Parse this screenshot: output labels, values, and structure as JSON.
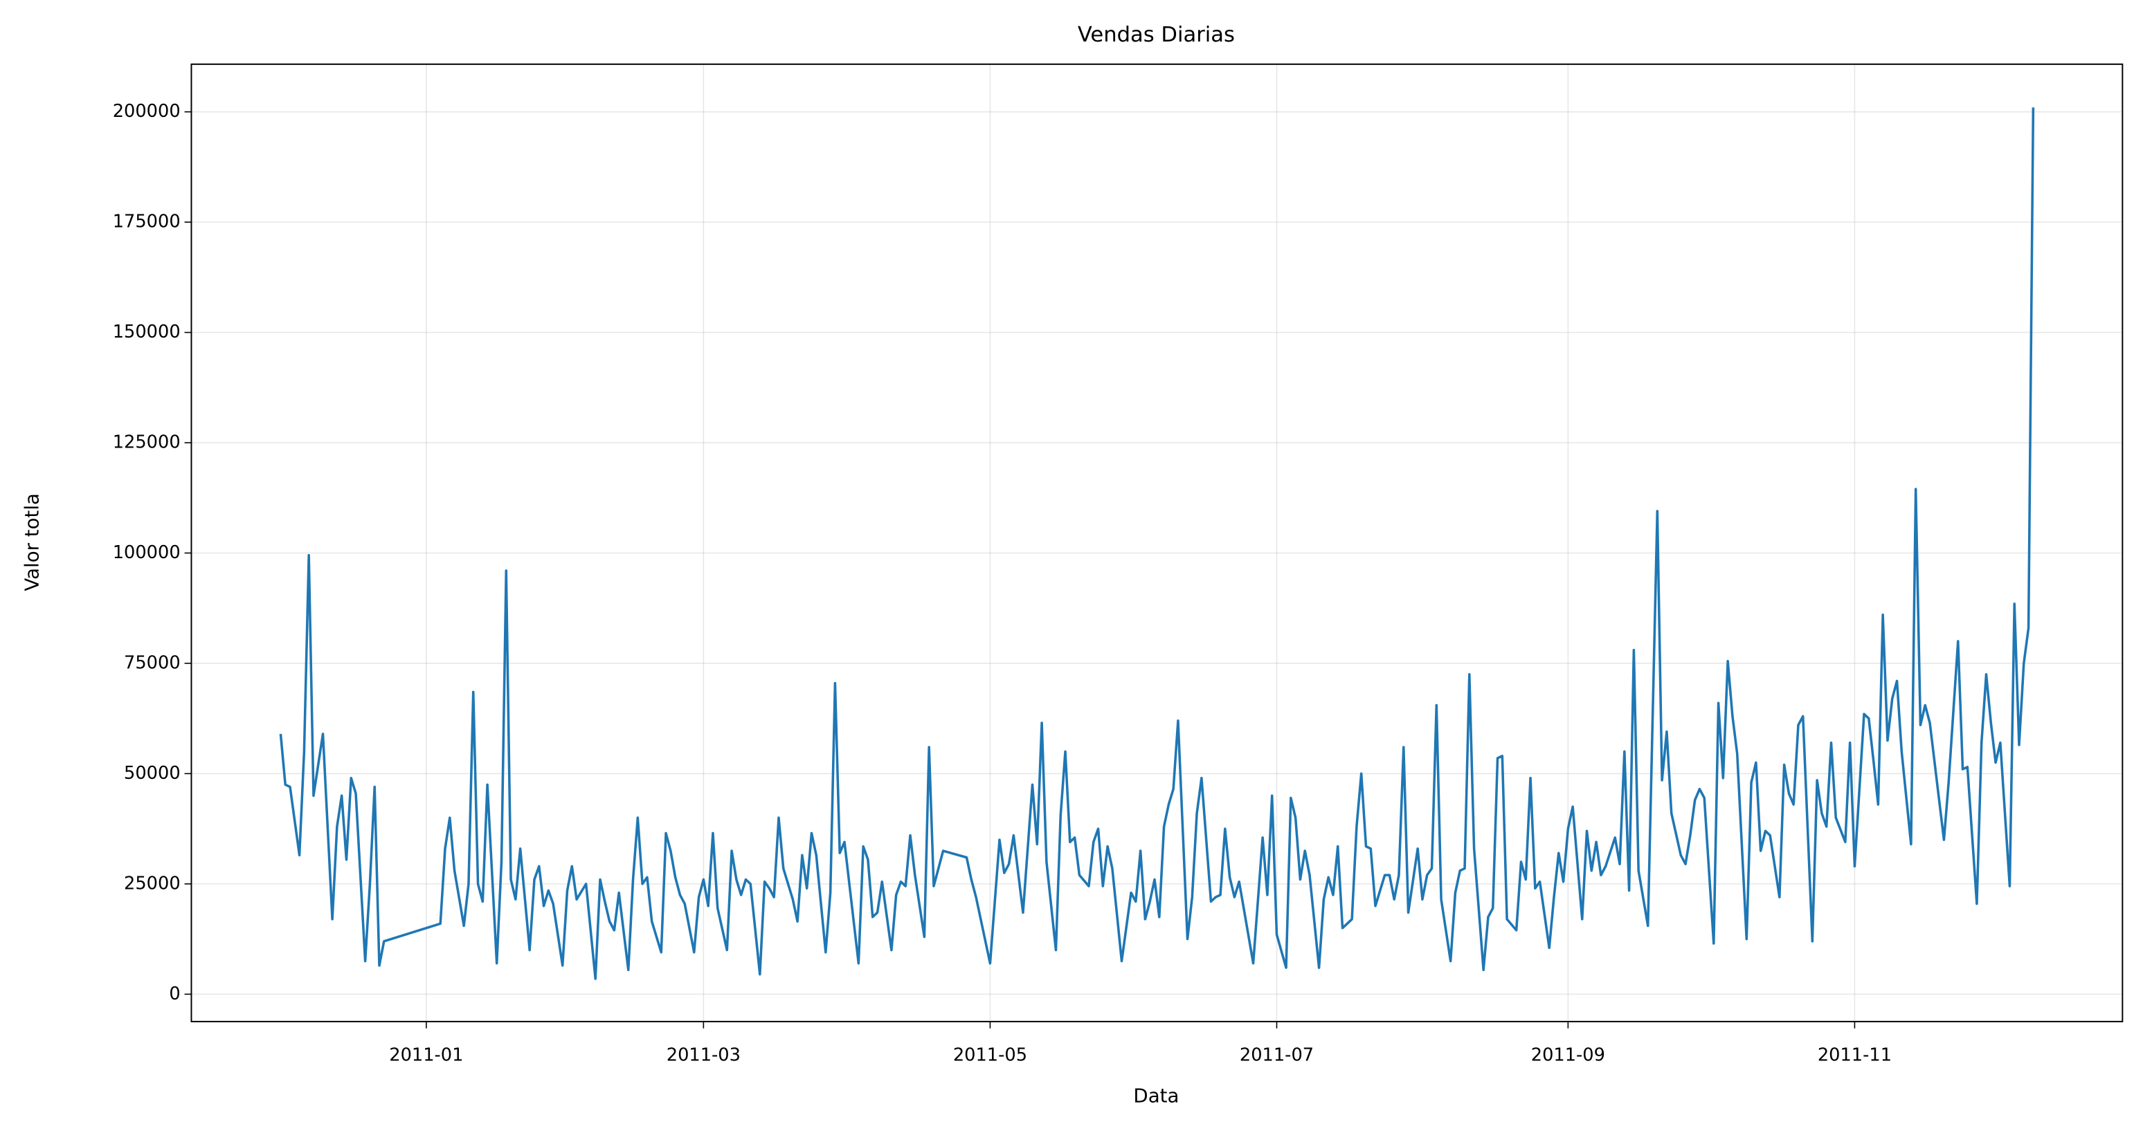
{
  "chart_data": {
    "type": "line",
    "title": "Vendas Diarias",
    "x_label": "Data",
    "y_label": "Valor totla",
    "color": "#1f77b4",
    "grid": true,
    "xlim": [
      -50,
      361
    ],
    "ylim": [
      -6200,
      210800
    ],
    "xticks": [
      {
        "value": 0,
        "label": "2011-01"
      },
      {
        "value": 59,
        "label": "2011-03"
      },
      {
        "value": 120,
        "label": "2011-05"
      },
      {
        "value": 181,
        "label": "2011-07"
      },
      {
        "value": 243,
        "label": "2011-09"
      },
      {
        "value": 304,
        "label": "2011-11"
      }
    ],
    "yticks": [
      0,
      25000,
      50000,
      75000,
      100000,
      125000,
      150000,
      175000,
      200000
    ],
    "x": [
      -31,
      -30,
      -29,
      -27,
      -26,
      -25,
      -24,
      -23,
      -22,
      -20,
      -19,
      -18,
      -17,
      -16,
      -15,
      -13,
      -12,
      -11,
      -10,
      -9,
      3,
      4,
      5,
      6,
      8,
      9,
      10,
      11,
      12,
      13,
      15,
      16,
      17,
      18,
      19,
      20,
      22,
      23,
      24,
      25,
      26,
      27,
      29,
      30,
      31,
      32,
      34,
      36,
      37,
      38,
      39,
      40,
      41,
      43,
      44,
      45,
      46,
      47,
      48,
      50,
      51,
      52,
      53,
      54,
      55,
      57,
      58,
      59,
      60,
      61,
      62,
      64,
      65,
      66,
      67,
      68,
      69,
      71,
      72,
      73,
      74,
      75,
      76,
      77,
      78,
      79,
      80,
      81,
      82,
      83,
      85,
      86,
      87,
      88,
      89,
      92,
      93,
      94,
      95,
      96,
      97,
      99,
      100,
      101,
      102,
      103,
      104,
      106,
      107,
      108,
      110,
      115,
      116,
      117,
      120,
      122,
      123,
      124,
      125,
      127,
      129,
      130,
      131,
      132,
      134,
      135,
      136,
      137,
      138,
      139,
      141,
      142,
      143,
      144,
      145,
      146,
      148,
      150,
      151,
      152,
      153,
      154,
      155,
      156,
      157,
      158,
      159,
      160,
      162,
      163,
      164,
      165,
      167,
      168,
      169,
      170,
      171,
      172,
      173,
      176,
      178,
      179,
      180,
      181,
      183,
      184,
      185,
      186,
      187,
      188,
      190,
      191,
      192,
      193,
      194,
      195,
      197,
      198,
      199,
      200,
      201,
      202,
      204,
      205,
      206,
      207,
      208,
      209,
      211,
      212,
      213,
      214,
      215,
      216,
      218,
      219,
      220,
      221,
      222,
      223,
      225,
      226,
      227,
      228,
      229,
      230,
      232,
      233,
      234,
      235,
      236,
      237,
      239,
      240,
      241,
      242,
      243,
      244,
      246,
      247,
      248,
      249,
      250,
      251,
      253,
      254,
      255,
      256,
      257,
      258,
      260,
      262,
      263,
      264,
      265,
      267,
      268,
      269,
      270,
      271,
      272,
      274,
      275,
      276,
      277,
      278,
      279,
      281,
      282,
      283,
      284,
      285,
      286,
      288,
      289,
      290,
      291,
      292,
      293,
      295,
      296,
      297,
      298,
      299,
      300,
      302,
      303,
      304,
      306,
      307,
      308,
      309,
      310,
      311,
      312,
      313,
      314,
      316,
      317,
      318,
      319,
      320,
      323,
      324,
      326,
      327,
      328,
      330,
      331,
      332,
      333,
      334,
      335,
      337,
      338,
      339,
      340,
      341,
      342
    ],
    "values": [
      59000,
      47500,
      47000,
      31500,
      55000,
      99500,
      45000,
      52000,
      59000,
      17000,
      38000,
      45000,
      30500,
      49000,
      45500,
      7500,
      25000,
      47000,
      6500,
      12000,
      16000,
      33000,
      40000,
      28000,
      15500,
      25000,
      68500,
      25000,
      21000,
      47500,
      7000,
      30000,
      96000,
      26000,
      21500,
      33000,
      10000,
      26000,
      29000,
      20000,
      23500,
      20500,
      6500,
      23500,
      29000,
      21500,
      25000,
      3500,
      26000,
      21000,
      16500,
      14500,
      23000,
      5500,
      26000,
      40000,
      25000,
      26500,
      16500,
      9500,
      36500,
      32500,
      26500,
      22500,
      20500,
      9500,
      22000,
      26000,
      20000,
      36500,
      19500,
      10000,
      32500,
      26000,
      22500,
      26000,
      25000,
      4500,
      25500,
      24000,
      22000,
      40000,
      28500,
      25000,
      21500,
      16500,
      31500,
      24000,
      36500,
      31500,
      9500,
      23000,
      70500,
      32000,
      34500,
      7000,
      33500,
      30500,
      17500,
      18500,
      25500,
      10000,
      22500,
      25500,
      24500,
      36000,
      27000,
      13000,
      56000,
      24500,
      32500,
      31000,
      26000,
      22000,
      7000,
      35000,
      27500,
      29500,
      36000,
      18500,
      47500,
      34000,
      61500,
      30000,
      10000,
      40500,
      55000,
      34500,
      35500,
      27000,
      24500,
      34500,
      37500,
      24500,
      33500,
      28500,
      7500,
      23000,
      21000,
      32500,
      17000,
      21000,
      26000,
      17500,
      38000,
      43000,
      46500,
      62000,
      12500,
      22000,
      41000,
      49000,
      21000,
      22000,
      22500,
      37500,
      26500,
      22000,
      25500,
      7000,
      35500,
      22500,
      45000,
      13500,
      6000,
      44500,
      40000,
      26000,
      32500,
      27000,
      6000,
      21500,
      26500,
      22500,
      33500,
      15000,
      17000,
      38000,
      50000,
      33500,
      33000,
      20000,
      27000,
      27000,
      21500,
      27000,
      56000,
      18500,
      33000,
      21500,
      27000,
      28500,
      65500,
      21500,
      7500,
      23000,
      28000,
      28500,
      72500,
      33000,
      5500,
      17500,
      19500,
      53500,
      54000,
      17000,
      14500,
      30000,
      26000,
      49000,
      24000,
      25500,
      10500,
      22000,
      32000,
      25500,
      37500,
      42500,
      17000,
      37000,
      28000,
      34500,
      27000,
      29000,
      35500,
      29500,
      55000,
      23500,
      78000,
      28000,
      15500,
      109500,
      48500,
      59500,
      41000,
      31500,
      29500,
      36000,
      44000,
      46500,
      44500,
      11500,
      66000,
      49000,
      75500,
      63000,
      54500,
      12500,
      48000,
      52500,
      32500,
      37000,
      36000,
      22000,
      52000,
      45500,
      43000,
      61000,
      63000,
      12000,
      48500,
      41000,
      38000,
      57000,
      40000,
      34500,
      57000,
      29000,
      63500,
      62500,
      53000,
      43000,
      86000,
      57500,
      67000,
      71000,
      55000,
      34000,
      114500,
      61000,
      65500,
      61500,
      35000,
      48000,
      80000,
      51000,
      51500,
      20500,
      57000,
      72500,
      61500,
      52500,
      57000,
      24500,
      88500,
      56500,
      75000,
      83000,
      201000
    ]
  }
}
